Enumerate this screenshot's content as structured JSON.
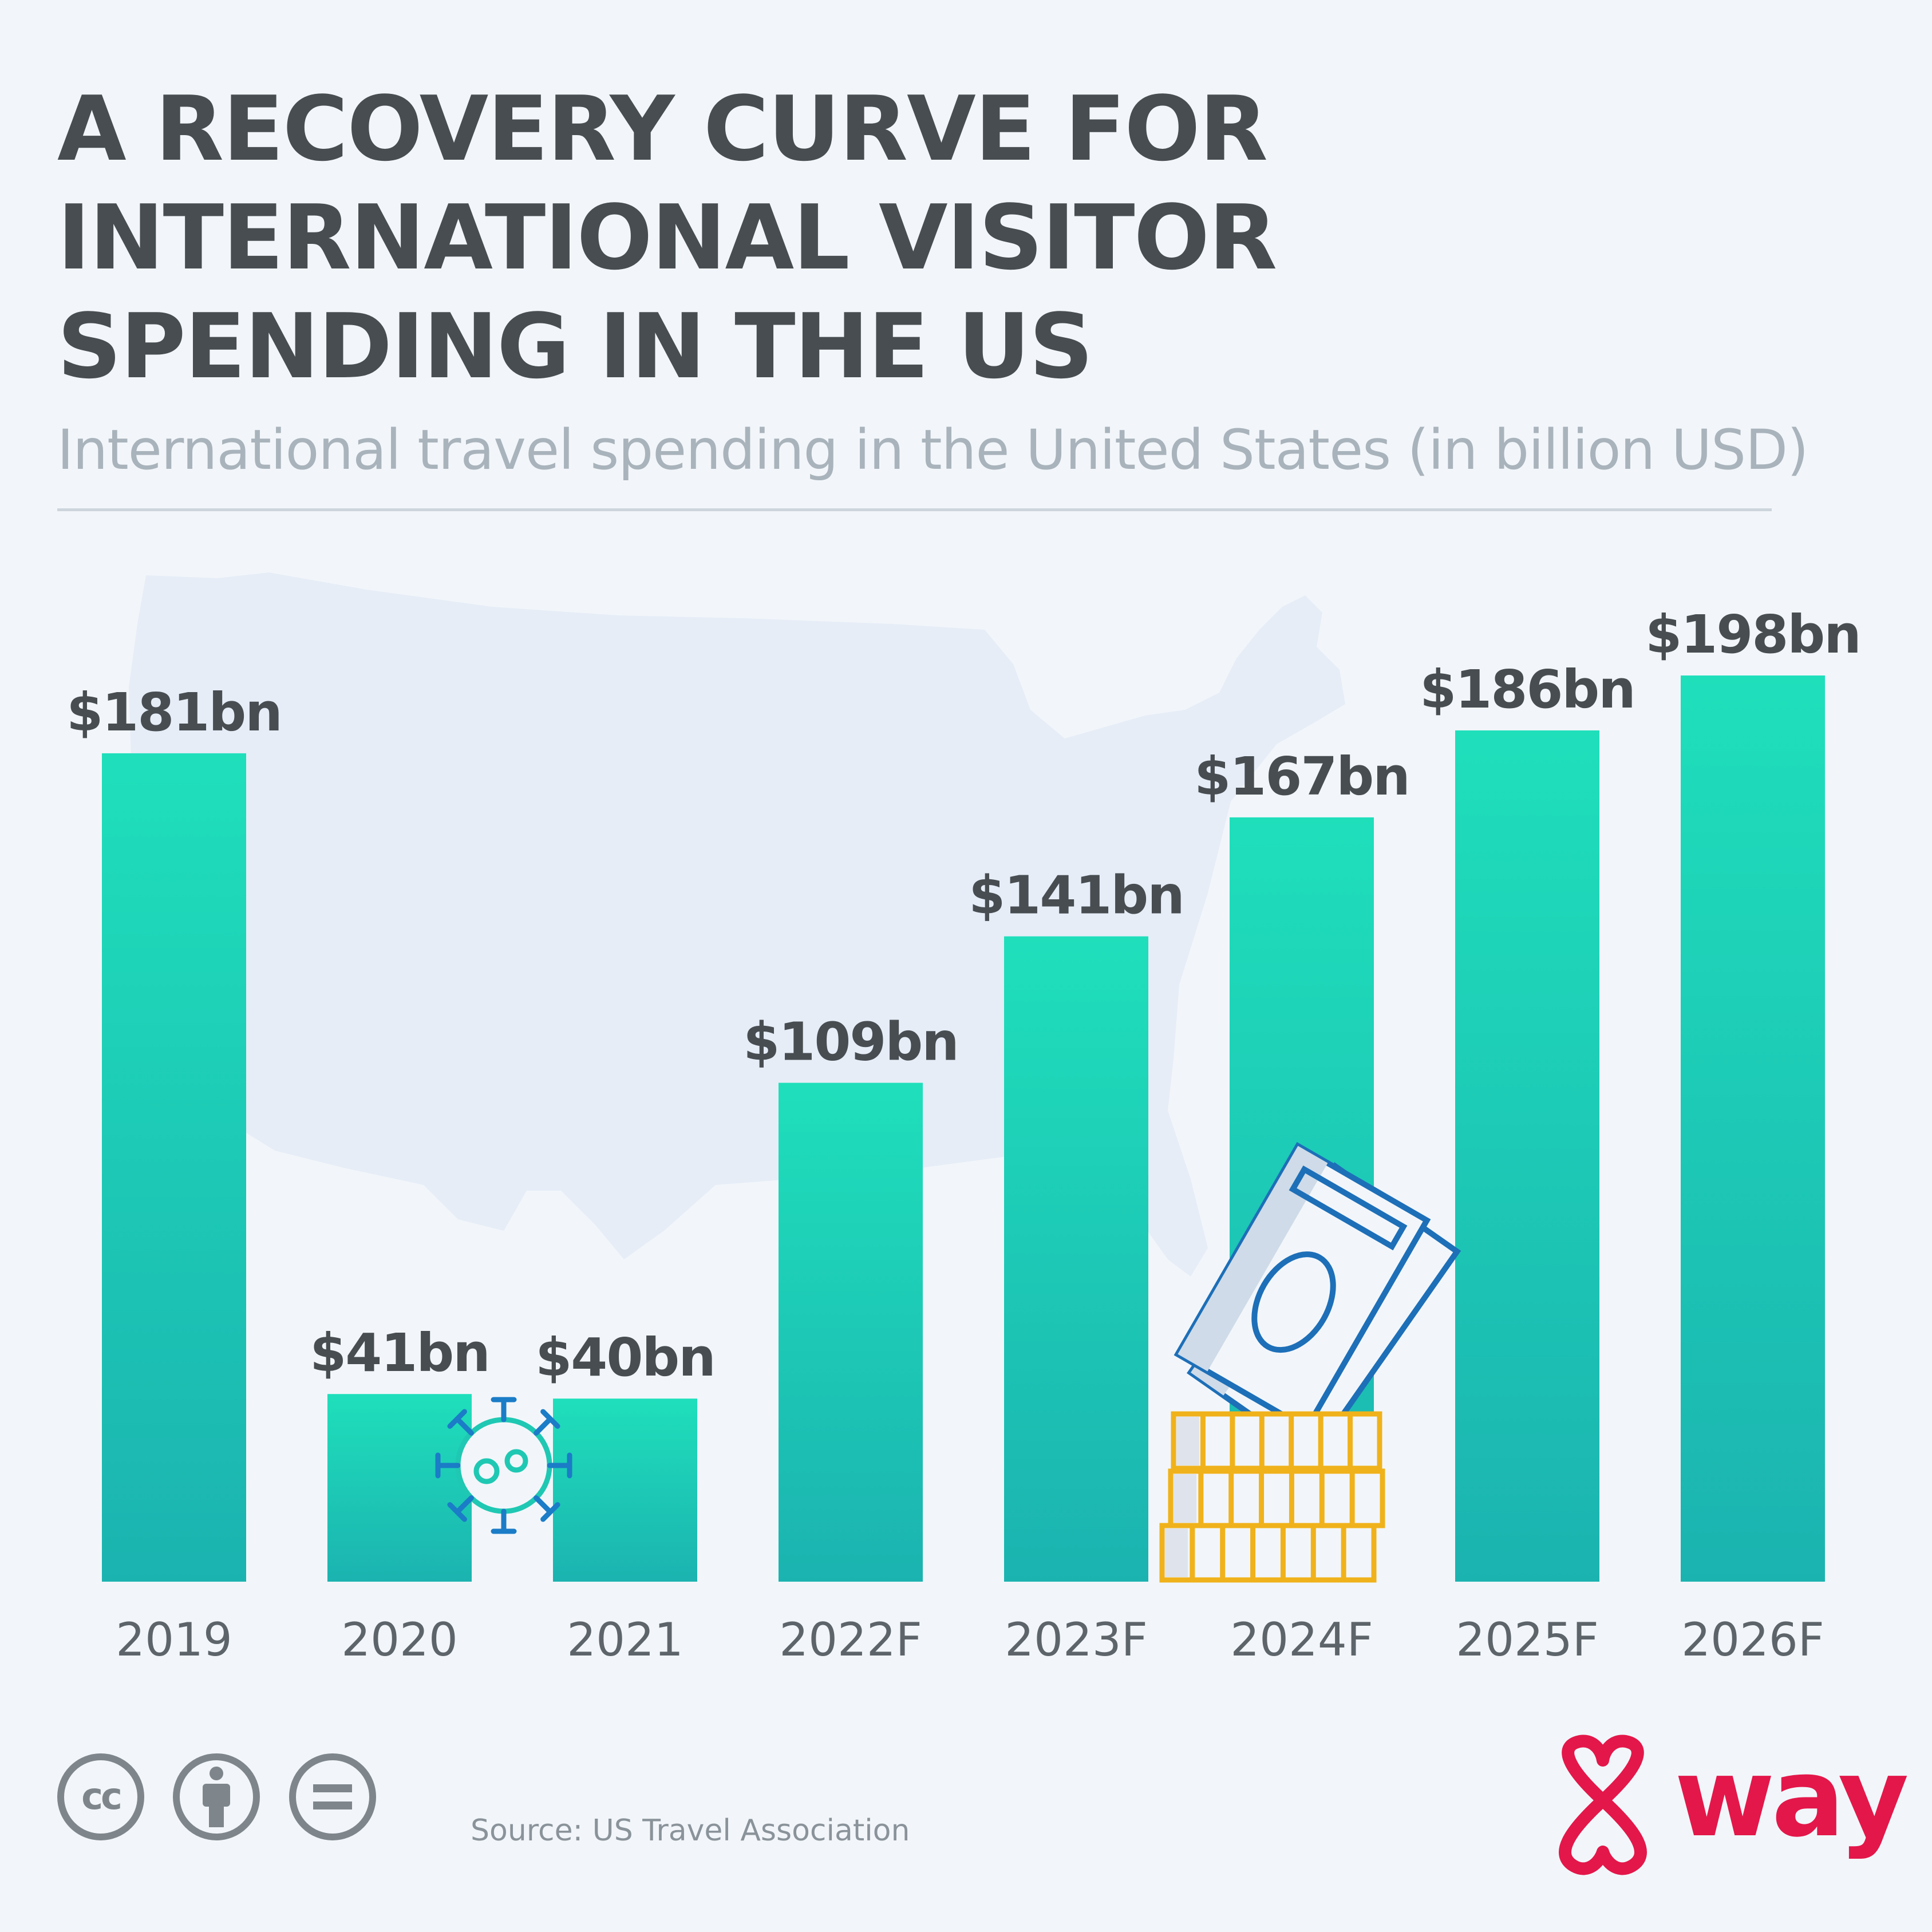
{
  "header": {
    "title_lines": [
      "A RECOVERY CURVE FOR",
      "INTERNATIONAL VISITOR",
      "SPENDING IN THE US"
    ],
    "subtitle": "International travel spending in the United States (in billion USD)"
  },
  "chart_data": {
    "type": "bar",
    "title": "A RECOVERY CURVE FOR INTERNATIONAL VISITOR SPENDING IN THE US",
    "subtitle": "International travel spending in the United States (in billion USD)",
    "categories": [
      "2019",
      "2020",
      "2021",
      "2022F",
      "2023F",
      "2024F",
      "2025F",
      "2026F"
    ],
    "values": [
      181,
      41,
      40,
      109,
      141,
      167,
      186,
      198
    ],
    "data_labels": [
      "$181bn",
      "$41bn",
      "$40bn",
      "$109bn",
      "$141bn",
      "$167bn",
      "$186bn",
      "$198bn"
    ],
    "ylim": [
      0,
      198
    ],
    "grid": false,
    "colors": {
      "bar_top": "#1fdfbb",
      "bar_bottom": "#1bb3b0",
      "label": "#474d51",
      "tick": "#5d656b"
    }
  },
  "decor": {
    "background_map": "usa-map-silhouette",
    "icons": [
      "virus-icon",
      "money-icon"
    ],
    "map_color": "#e6edf7",
    "virus_color": "#1b7cc7",
    "money_color": "#1d6fb8",
    "coin_color": "#f0b21b"
  },
  "footer": {
    "source": "Source: US Travel Association",
    "cc_text": "cc",
    "brand": "way",
    "brand_color": "#e3174a"
  }
}
